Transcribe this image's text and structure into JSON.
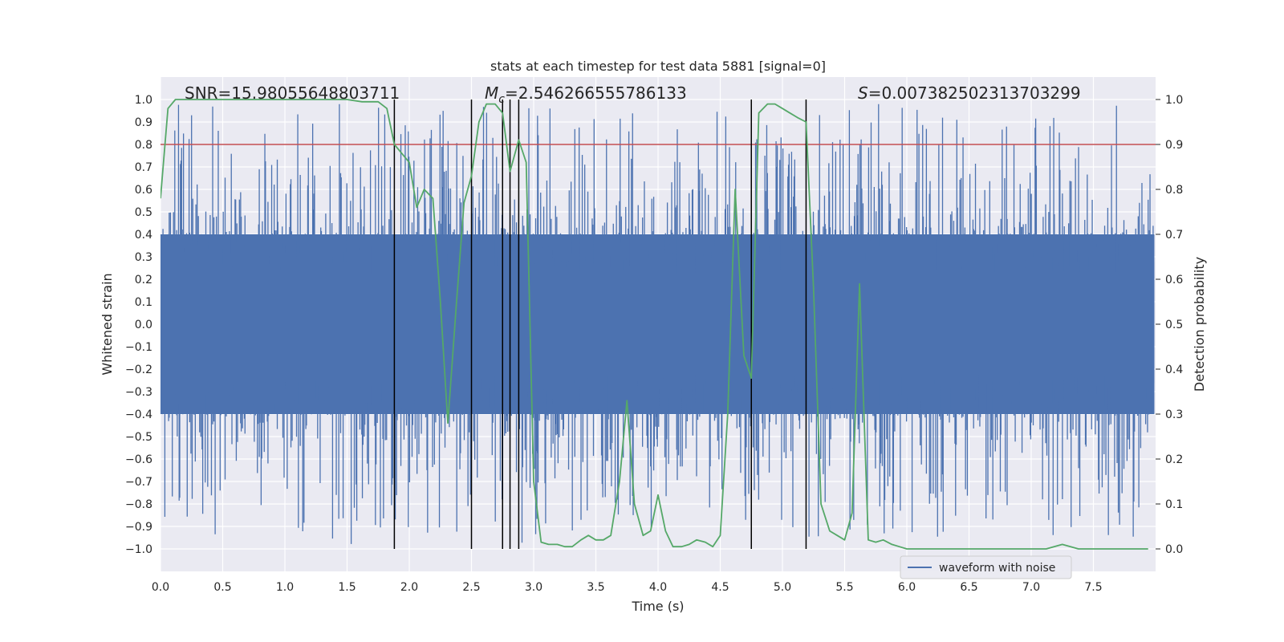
{
  "chart_data": {
    "type": "line",
    "title": "stats at each timestep for test data 5881 [signal=0]",
    "xlabel": "Time (s)",
    "ylabel_left": "Whitened strain",
    "ylabel_right": "Detection probability",
    "xlim": [
      0.0,
      8.0
    ],
    "ylim_left": [
      -1.1,
      1.1
    ],
    "ylim_right": [
      -0.05,
      1.05
    ],
    "x_ticks": [
      "0.0",
      "0.5",
      "1.0",
      "1.5",
      "2.0",
      "2.5",
      "3.0",
      "3.5",
      "4.0",
      "4.5",
      "5.0",
      "5.5",
      "6.0",
      "6.5",
      "7.0",
      "7.5"
    ],
    "y_ticks_left": [
      "1.0",
      "0.9",
      "0.8",
      "0.7",
      "0.6",
      "0.5",
      "0.4",
      "0.3",
      "0.2",
      "0.1",
      "0.0",
      "−0.1",
      "−0.2",
      "−0.3",
      "−0.4",
      "−0.5",
      "−0.6",
      "−0.7",
      "−0.8",
      "−0.9",
      "−1.0"
    ],
    "y_ticks_right": [
      "1.0",
      "0.9",
      "0.8",
      "0.7",
      "0.6",
      "0.5",
      "0.4",
      "0.3",
      "0.2",
      "0.1",
      "0.0"
    ],
    "legend": {
      "label": "waveform with noise",
      "position": "lower-right"
    },
    "annotations": {
      "snr": "SNR=15.98055648803711",
      "mc_symbol": "M",
      "mc_sub": "c",
      "mc_value": "=2.546266555786133",
      "s_symbol": "S",
      "s_value": "=0.007382502313703299"
    },
    "threshold": {
      "value": 0.8,
      "axis": "left",
      "color": "#c44e52"
    },
    "vlines": [
      1.88,
      2.5,
      2.75,
      2.81,
      2.88,
      4.75,
      5.19
    ],
    "strain_series": {
      "name": "waveform with noise",
      "color": "#4c72b0",
      "x_start": 0.0,
      "x_end": 7.99,
      "samples": 1600,
      "dense_band": [
        -0.4,
        0.4
      ],
      "max_abs": 0.98
    },
    "probability_series": {
      "name": "detection probability",
      "color": "#55a868",
      "x": [
        0.0,
        0.06,
        0.12,
        0.25,
        0.5,
        0.75,
        1.0,
        1.25,
        1.5,
        1.62,
        1.75,
        1.82,
        1.88,
        1.94,
        2.0,
        2.06,
        2.12,
        2.19,
        2.25,
        2.31,
        2.38,
        2.44,
        2.5,
        2.56,
        2.62,
        2.69,
        2.75,
        2.81,
        2.88,
        2.94,
        3.0,
        3.06,
        3.12,
        3.19,
        3.25,
        3.31,
        3.38,
        3.44,
        3.5,
        3.56,
        3.62,
        3.69,
        3.75,
        3.81,
        3.88,
        3.94,
        4.0,
        4.06,
        4.12,
        4.19,
        4.25,
        4.31,
        4.38,
        4.44,
        4.5,
        4.56,
        4.62,
        4.69,
        4.75,
        4.81,
        4.88,
        4.94,
        5.0,
        5.06,
        5.12,
        5.19,
        5.25,
        5.31,
        5.38,
        5.44,
        5.5,
        5.56,
        5.62,
        5.69,
        5.75,
        5.81,
        5.88,
        5.94,
        6.0,
        6.25,
        6.5,
        6.75,
        7.0,
        7.12,
        7.25,
        7.38,
        7.5,
        7.75,
        7.94
      ],
      "y": [
        0.78,
        0.98,
        1.0,
        1.0,
        1.0,
        1.0,
        1.0,
        1.0,
        1.0,
        0.995,
        0.995,
        0.98,
        0.9,
        0.88,
        0.86,
        0.76,
        0.8,
        0.78,
        0.55,
        0.28,
        0.55,
        0.77,
        0.83,
        0.95,
        0.99,
        0.99,
        0.97,
        0.84,
        0.91,
        0.86,
        0.15,
        0.015,
        0.01,
        0.01,
        0.005,
        0.005,
        0.02,
        0.03,
        0.02,
        0.02,
        0.03,
        0.15,
        0.33,
        0.1,
        0.03,
        0.04,
        0.12,
        0.04,
        0.005,
        0.005,
        0.01,
        0.02,
        0.015,
        0.005,
        0.03,
        0.3,
        0.8,
        0.43,
        0.38,
        0.97,
        0.99,
        0.99,
        0.98,
        0.97,
        0.96,
        0.95,
        0.58,
        0.1,
        0.04,
        0.03,
        0.02,
        0.08,
        0.59,
        0.02,
        0.015,
        0.02,
        0.01,
        0.005,
        0.0,
        0.0,
        0.0,
        0.0,
        0.0,
        0.0,
        0.01,
        0.0,
        0.0,
        0.0,
        0.0
      ]
    }
  }
}
